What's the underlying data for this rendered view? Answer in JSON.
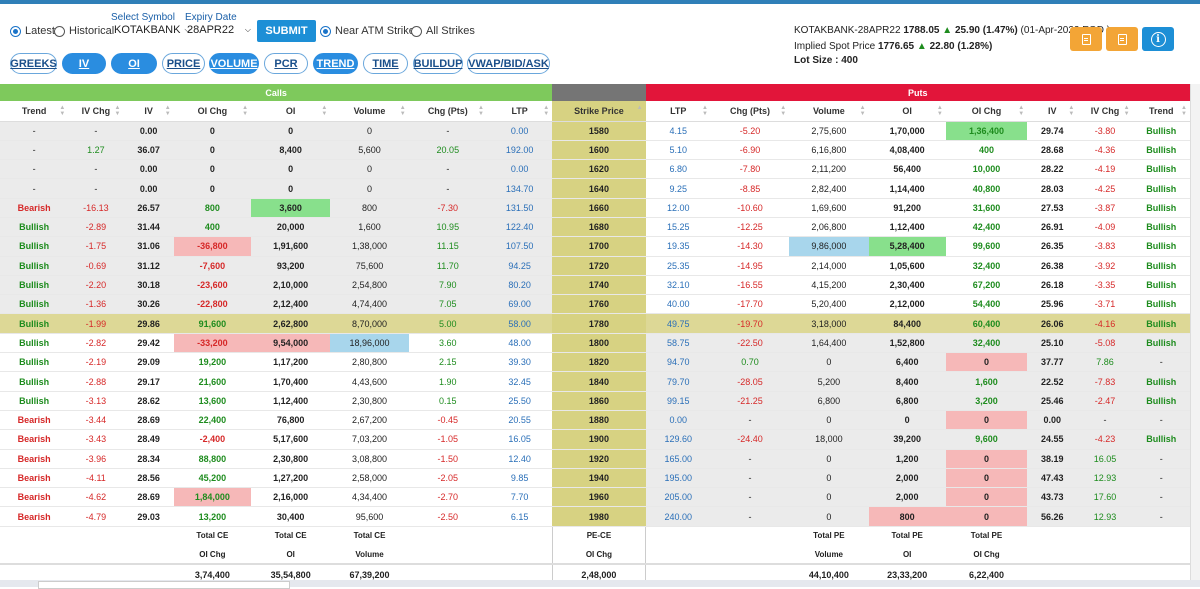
{
  "controls": {
    "latest_label": "Latest",
    "historical_label": "Historical",
    "select_symbol_label": "Select Symbol",
    "symbol_value": "KOTAKBANK",
    "expiry_label": "Expiry Date",
    "expiry_value": "28APR22",
    "submit_label": "SUBMIT",
    "near_atm_label": "Near ATM Strikes",
    "all_strikes_label": "All Strikes",
    "pills": [
      "GREEKS",
      "IV",
      "OI",
      "PRICE",
      "VOLUME",
      "PCR",
      "TREND",
      "TIME",
      "BUILDUP",
      "VWAP/BID/ASK"
    ]
  },
  "quote": {
    "symbol_line": "KOTAKBANK-28APR22",
    "price": "1788.05",
    "change": "25.90 (1.47%)",
    "date": "(01-Apr-2022 EOD )",
    "implied_label": "Implied Spot Price",
    "implied_price": "1776.65",
    "implied_change": "22.80 (1.28%)",
    "lot_label": "Lot Size :",
    "lot_value": "400"
  },
  "sections": {
    "calls": "Calls",
    "puts": "Puts"
  },
  "headers": [
    "Trend",
    "IV Chg",
    "IV",
    "OI Chg",
    "OI",
    "Volume",
    "Chg (Pts)",
    "LTP",
    "Strike Price",
    "LTP",
    "Chg (Pts)",
    "Volume",
    "OI",
    "OI Chg",
    "IV",
    "IV Chg",
    "Trend"
  ],
  "rows": [
    [
      "-",
      "-",
      "0.00",
      "0",
      "0",
      "0",
      "-",
      "0.00",
      "1580",
      "4.15",
      "-5.20",
      "2,75,600",
      "1,70,000",
      "1,36,400",
      "29.74",
      "-3.80",
      "Bullish"
    ],
    [
      "-",
      "1.27",
      "36.07",
      "0",
      "8,400",
      "5,600",
      "20.05",
      "192.00",
      "1600",
      "5.10",
      "-6.90",
      "6,16,800",
      "4,08,400",
      "400",
      "28.68",
      "-4.36",
      "Bullish"
    ],
    [
      "-",
      "-",
      "0.00",
      "0",
      "0",
      "0",
      "-",
      "0.00",
      "1620",
      "6.80",
      "-7.80",
      "2,11,200",
      "56,400",
      "10,000",
      "28.22",
      "-4.19",
      "Bullish"
    ],
    [
      "-",
      "-",
      "0.00",
      "0",
      "0",
      "0",
      "-",
      "134.70",
      "1640",
      "9.25",
      "-8.85",
      "2,82,400",
      "1,14,400",
      "40,800",
      "28.03",
      "-4.25",
      "Bullish"
    ],
    [
      "Bearish",
      "-16.13",
      "26.57",
      "800",
      "3,600",
      "800",
      "-7.30",
      "131.50",
      "1660",
      "12.00",
      "-10.60",
      "1,69,600",
      "91,200",
      "31,600",
      "27.53",
      "-3.87",
      "Bullish"
    ],
    [
      "Bullish",
      "-2.89",
      "31.44",
      "400",
      "20,000",
      "1,600",
      "10.95",
      "122.40",
      "1680",
      "15.25",
      "-12.25",
      "2,06,800",
      "1,12,400",
      "42,400",
      "26.91",
      "-4.09",
      "Bullish"
    ],
    [
      "Bullish",
      "-1.75",
      "31.06",
      "-36,800",
      "1,91,600",
      "1,38,000",
      "11.15",
      "107.50",
      "1700",
      "19.35",
      "-14.30",
      "9,86,000",
      "5,28,400",
      "99,600",
      "26.35",
      "-3.83",
      "Bullish"
    ],
    [
      "Bullish",
      "-0.69",
      "31.12",
      "-7,600",
      "93,200",
      "75,600",
      "11.70",
      "94.25",
      "1720",
      "25.35",
      "-14.95",
      "2,14,000",
      "1,05,600",
      "32,400",
      "26.38",
      "-3.92",
      "Bullish"
    ],
    [
      "Bullish",
      "-2.20",
      "30.18",
      "-23,600",
      "2,10,000",
      "2,54,800",
      "7.90",
      "80.20",
      "1740",
      "32.10",
      "-16.55",
      "4,15,200",
      "2,30,400",
      "67,200",
      "26.18",
      "-3.35",
      "Bullish"
    ],
    [
      "Bullish",
      "-1.36",
      "30.26",
      "-22,800",
      "2,12,400",
      "4,74,400",
      "7.05",
      "69.00",
      "1760",
      "40.00",
      "-17.70",
      "5,20,400",
      "2,12,000",
      "54,400",
      "25.96",
      "-3.71",
      "Bullish"
    ],
    [
      "Bullish",
      "-1.99",
      "29.86",
      "91,600",
      "2,62,800",
      "8,70,000",
      "5.00",
      "58.00",
      "1780",
      "49.75",
      "-19.70",
      "3,18,000",
      "84,400",
      "60,400",
      "26.06",
      "-4.16",
      "Bullish"
    ],
    [
      "Bullish",
      "-2.82",
      "29.42",
      "-33,200",
      "9,54,000",
      "18,96,000",
      "3.60",
      "48.00",
      "1800",
      "58.75",
      "-22.50",
      "1,64,400",
      "1,52,800",
      "32,400",
      "25.10",
      "-5.08",
      "Bullish"
    ],
    [
      "Bullish",
      "-2.19",
      "29.09",
      "19,200",
      "1,17,200",
      "2,80,800",
      "2.15",
      "39.30",
      "1820",
      "94.70",
      "0.70",
      "0",
      "6,400",
      "0",
      "37.77",
      "7.86",
      "-"
    ],
    [
      "Bullish",
      "-2.88",
      "29.17",
      "21,600",
      "1,70,400",
      "4,43,600",
      "1.90",
      "32.45",
      "1840",
      "79.70",
      "-28.05",
      "5,200",
      "8,400",
      "1,600",
      "22.52",
      "-7.83",
      "Bullish"
    ],
    [
      "Bullish",
      "-3.13",
      "28.62",
      "13,600",
      "1,12,400",
      "2,30,800",
      "0.15",
      "25.50",
      "1860",
      "99.15",
      "-21.25",
      "6,800",
      "6,800",
      "3,200",
      "25.46",
      "-2.47",
      "Bullish"
    ],
    [
      "Bearish",
      "-3.44",
      "28.69",
      "22,400",
      "76,800",
      "2,67,200",
      "-0.45",
      "20.55",
      "1880",
      "0.00",
      "-",
      "0",
      "0",
      "0",
      "0.00",
      "-",
      "-"
    ],
    [
      "Bearish",
      "-3.43",
      "28.49",
      "-2,400",
      "5,17,600",
      "7,03,200",
      "-1.05",
      "16.05",
      "1900",
      "129.60",
      "-24.40",
      "18,000",
      "39,200",
      "9,600",
      "24.55",
      "-4.23",
      "Bullish"
    ],
    [
      "Bearish",
      "-3.96",
      "28.34",
      "88,800",
      "2,30,800",
      "3,08,800",
      "-1.50",
      "12.40",
      "1920",
      "165.00",
      "-",
      "0",
      "1,200",
      "0",
      "38.19",
      "16.05",
      "-"
    ],
    [
      "Bearish",
      "-4.11",
      "28.56",
      "45,200",
      "1,27,200",
      "2,58,000",
      "-2.05",
      "9.85",
      "1940",
      "195.00",
      "-",
      "0",
      "2,000",
      "0",
      "47.43",
      "12.93",
      "-"
    ],
    [
      "Bearish",
      "-4.62",
      "28.69",
      "1,84,000",
      "2,16,000",
      "4,34,400",
      "-2.70",
      "7.70",
      "1960",
      "205.00",
      "-",
      "0",
      "2,000",
      "0",
      "43.73",
      "17.60",
      "-"
    ],
    [
      "Bearish",
      "-4.79",
      "29.03",
      "13,200",
      "30,400",
      "95,600",
      "-2.50",
      "6.15",
      "1980",
      "240.00",
      "-",
      "0",
      "800",
      "0",
      "56.26",
      "12.93",
      "-"
    ]
  ],
  "totals": {
    "labels": [
      [
        "Total CE",
        "OI Chg"
      ],
      [
        "Total CE",
        "OI"
      ],
      [
        "Total CE",
        "Volume"
      ],
      [
        "PE-CE",
        "OI Chg"
      ],
      [
        "Total PE",
        "Volume"
      ],
      [
        "Total PE",
        "OI"
      ],
      [
        "Total PE",
        "OI Chg"
      ]
    ],
    "values": [
      "3,74,400",
      "35,54,800",
      "67,39,200",
      "2,48,000",
      "44,10,400",
      "23,33,200",
      "6,22,400"
    ]
  },
  "colors": {
    "calls": "#7ec95c",
    "puts": "#e2153a",
    "strike_header": "#757575",
    "accent": "#1d8fd6"
  }
}
